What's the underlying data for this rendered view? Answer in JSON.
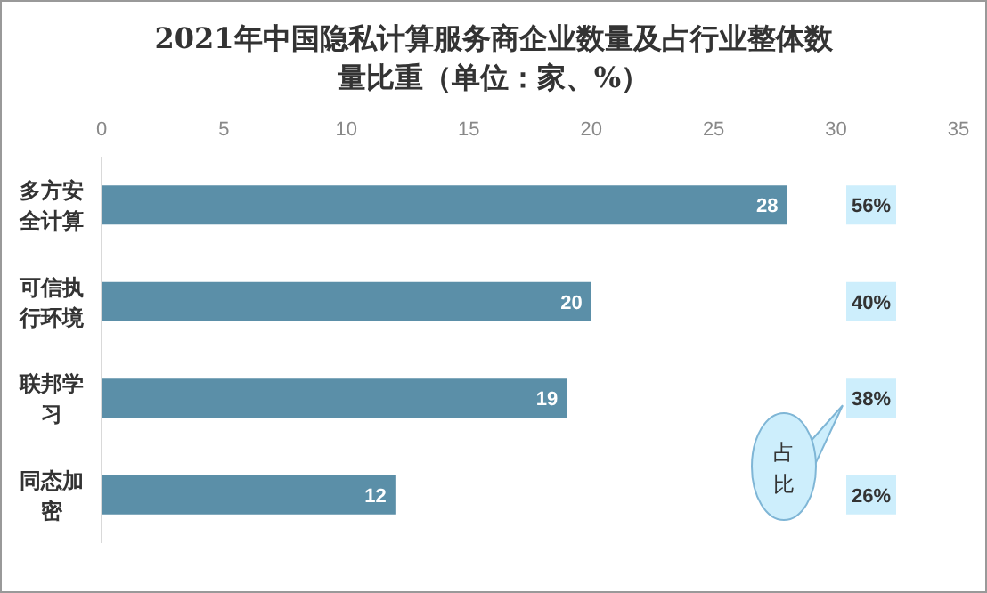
{
  "chart_data": {
    "type": "bar",
    "orientation": "horizontal",
    "title": "2021年中国隐私计算服务商企业数量及占行业整体数量比重（单位：家、%）",
    "categories": [
      "多方安全计算",
      "可信执行环境",
      "联邦学习",
      "同态加密"
    ],
    "values": [
      28,
      20,
      19,
      12
    ],
    "color": "#5b8fa8",
    "data_labels": true,
    "xlim": [
      0,
      35
    ],
    "xticks": [
      0,
      5,
      10,
      15,
      20,
      25,
      30,
      35
    ],
    "annotations": [
      {
        "text": "56%",
        "y": "多方安全计算"
      },
      {
        "text": "40%",
        "y": "可信执行环境"
      },
      {
        "text": "38%",
        "y": "联邦学习"
      },
      {
        "text": "26%",
        "y": "同态加密"
      },
      "占比"
    ]
  }
}
